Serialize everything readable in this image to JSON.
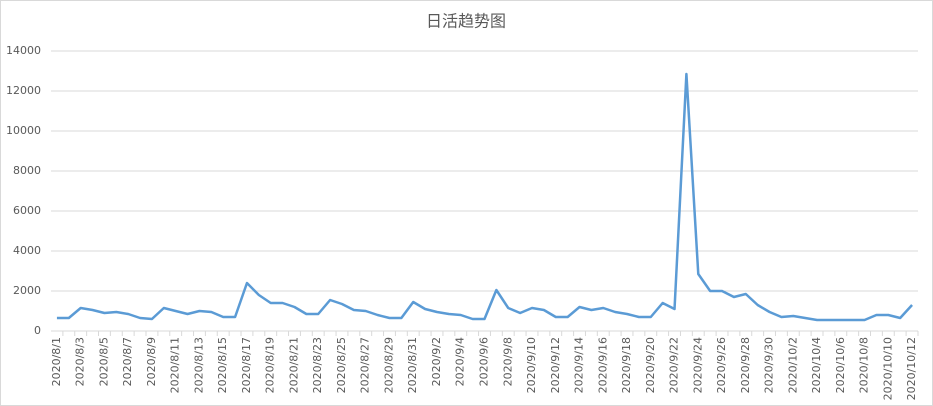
{
  "chart_data": {
    "type": "line",
    "title": "日活趋势图",
    "categories": [
      "2020/8/1",
      null,
      "2020/8/3",
      null,
      "2020/8/5",
      null,
      "2020/8/7",
      null,
      "2020/8/9",
      null,
      "2020/8/11",
      null,
      "2020/8/13",
      null,
      "2020/8/15",
      null,
      "2020/8/17",
      null,
      "2020/8/19",
      null,
      "2020/8/21",
      null,
      "2020/8/23",
      null,
      "2020/8/25",
      null,
      "2020/8/27",
      null,
      "2020/8/29",
      null,
      "2020/8/31",
      null,
      "2020/9/2",
      null,
      "2020/9/4",
      null,
      "2020/9/6",
      null,
      "2020/9/8",
      null,
      "2020/9/10",
      null,
      "2020/9/12",
      null,
      "2020/9/14",
      null,
      "2020/9/16",
      null,
      "2020/9/18",
      null,
      "2020/9/20",
      null,
      "2020/9/22",
      null,
      "2020/9/24",
      null,
      "2020/9/26",
      null,
      "2020/9/28",
      null,
      "2020/9/30",
      null,
      "2020/10/2",
      null,
      "2020/10/4",
      null,
      "2020/10/6",
      null,
      "2020/10/8",
      null,
      "2020/10/10",
      null,
      "2020/10/12"
    ],
    "values": [
      650,
      650,
      1150,
      1050,
      900,
      950,
      850,
      650,
      600,
      1150,
      1000,
      850,
      1000,
      950,
      700,
      700,
      2400,
      1800,
      1400,
      1400,
      1200,
      850,
      850,
      1550,
      1350,
      1050,
      1000,
      800,
      650,
      650,
      1450,
      1100,
      950,
      850,
      800,
      600,
      600,
      2050,
      1150,
      900,
      1150,
      1050,
      700,
      700,
      1200,
      1050,
      1150,
      950,
      850,
      700,
      700,
      1400,
      1100,
      12850,
      2850,
      2000,
      2000,
      1700,
      1850,
      1300,
      950,
      700,
      750,
      650,
      550,
      550,
      550,
      550,
      550,
      800,
      800,
      650,
      1300
    ],
    "color": "#5b9bd5",
    "ylim": [
      0,
      14000
    ],
    "yticks": [
      0,
      2000,
      4000,
      6000,
      8000,
      10000,
      12000,
      14000
    ],
    "grid": true
  }
}
